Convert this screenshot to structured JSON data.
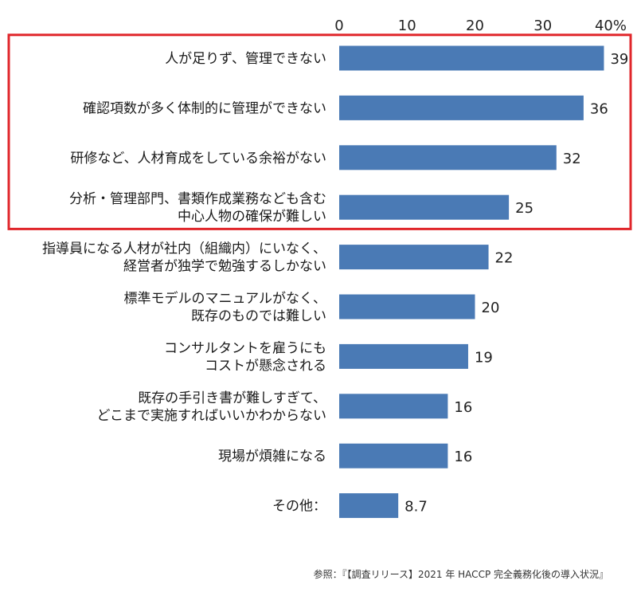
{
  "chart_data": {
    "type": "bar",
    "orientation": "horizontal",
    "categories": [
      [
        "人が足りず、管理できない"
      ],
      [
        "確認項数が多く体制的に管理ができない"
      ],
      [
        "研修など、人材育成をしている余裕がない"
      ],
      [
        "分析・管理部門、書類作成業務なども含む",
        "中心人物の確保が難しい"
      ],
      [
        "指導員になる人材が社内（組織内）にいなく、",
        "経営者が独学で勉強するしかない"
      ],
      [
        "標準モデルのマニュアルがなく、",
        "既存のものでは難しい"
      ],
      [
        "コンサルタントを雇うにも",
        "コストが懸念される"
      ],
      [
        "既存の手引き書が難しすぎて、",
        "どこまで実施すればいいかわからない"
      ],
      [
        "現場が煩雑になる"
      ],
      [
        "その他："
      ]
    ],
    "values": [
      39,
      36,
      32,
      25,
      22,
      20,
      19,
      16,
      16,
      8.7
    ],
    "value_labels": [
      "39",
      "36",
      "32",
      "25",
      "22",
      "20",
      "19",
      "16",
      "16",
      "8.7"
    ],
    "tick_labels": [
      "0",
      "10",
      "20",
      "30",
      "40%"
    ],
    "xlim": [
      0,
      40
    ],
    "grid": false,
    "legend": "none",
    "bar_color": "#4a7ab5",
    "highlight_box": {
      "from_category": 0,
      "to_category": 3,
      "color": "#e0262b"
    }
  },
  "source": "参照：『【調査リリース】2021 年 HACCP 完全義務化後の導入状況』"
}
